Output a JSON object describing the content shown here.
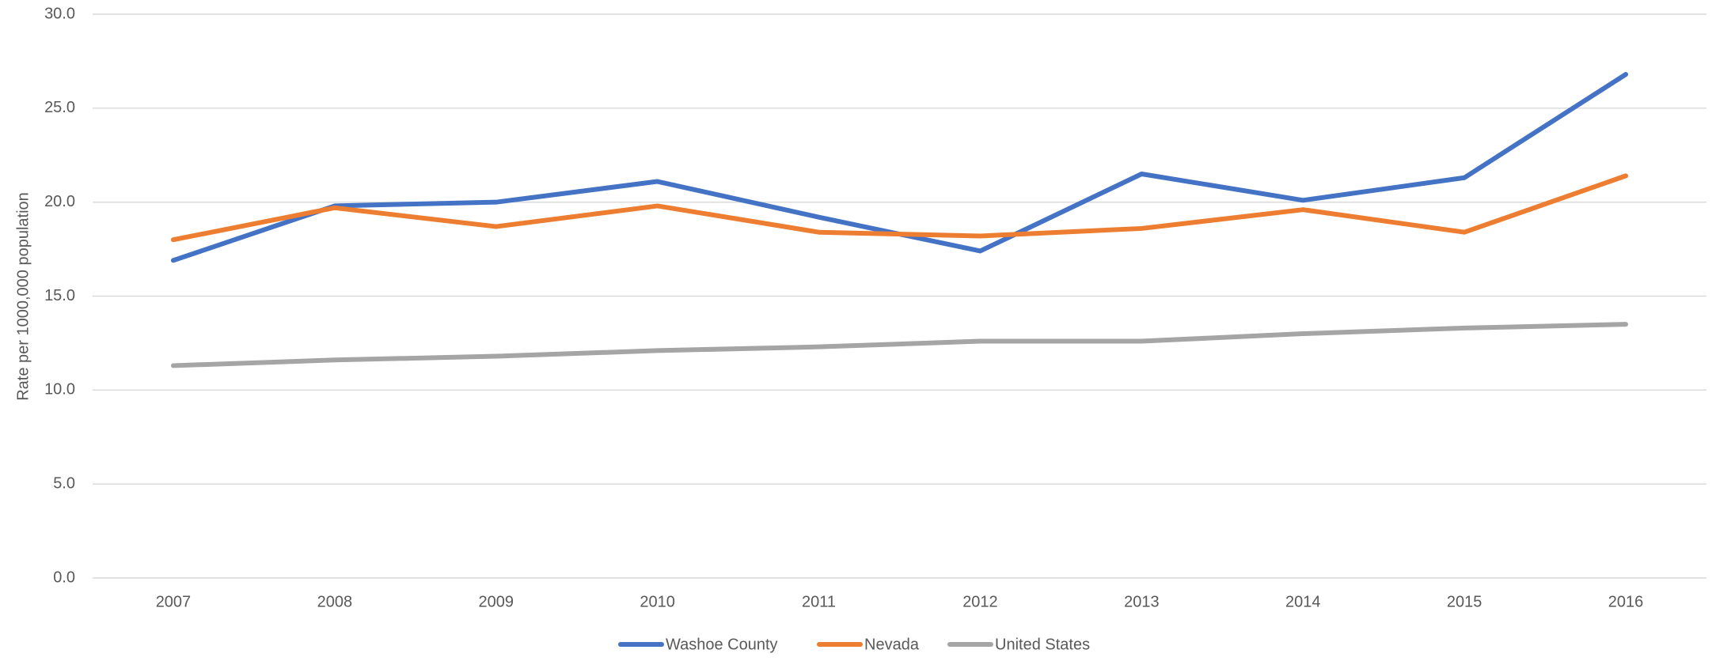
{
  "chart_data": {
    "type": "line",
    "y_label": "Rate per 1000,000 population",
    "categories": [
      "2007",
      "2008",
      "2009",
      "2010",
      "2011",
      "2012",
      "2013",
      "2014",
      "2015",
      "2016"
    ],
    "series": [
      {
        "name": "Washoe County",
        "color": "#4472c4",
        "values": [
          16.9,
          19.8,
          20.0,
          21.1,
          19.2,
          17.4,
          21.5,
          20.1,
          21.3,
          26.8
        ]
      },
      {
        "name": "Nevada",
        "color": "#ed7d31",
        "values": [
          18.0,
          19.7,
          18.7,
          19.8,
          18.4,
          18.2,
          18.6,
          19.6,
          18.4,
          21.4
        ]
      },
      {
        "name": "United States",
        "color": "#a5a5a5",
        "values": [
          11.3,
          11.6,
          11.8,
          12.1,
          12.3,
          12.6,
          12.6,
          13.0,
          13.3,
          13.5
        ]
      }
    ],
    "ylim": [
      0,
      30
    ],
    "yticks": [
      {
        "value": 0,
        "label": "0.0"
      },
      {
        "value": 5,
        "label": "5.0"
      },
      {
        "value": 10,
        "label": "10.0"
      },
      {
        "value": 15,
        "label": "15.0"
      },
      {
        "value": 20,
        "label": "20.0"
      },
      {
        "value": 25,
        "label": "25.0"
      },
      {
        "value": 30,
        "label": "30.0"
      }
    ],
    "grid": true,
    "legend": "bottom"
  }
}
